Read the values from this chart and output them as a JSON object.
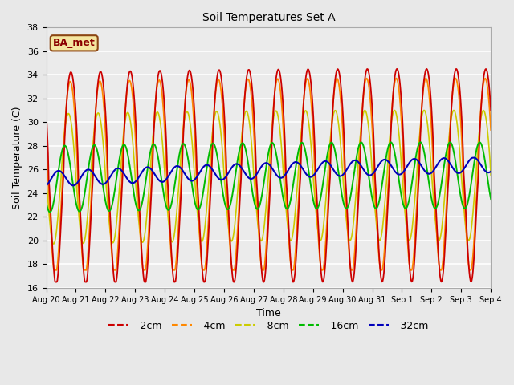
{
  "title": "Soil Temperatures Set A",
  "xlabel": "Time",
  "ylabel": "Soil Temperature (C)",
  "ylim": [
    16,
    38
  ],
  "background_color": "#e8e8e8",
  "plot_bg_color": "#ebebeb",
  "grid_color": "#ffffff",
  "series": {
    "-2cm": {
      "color": "#cc0000"
    },
    "-4cm": {
      "color": "#ff8800"
    },
    "-8cm": {
      "color": "#cccc00"
    },
    "-16cm": {
      "color": "#00bb00"
    },
    "-32cm": {
      "color": "#0000bb"
    }
  },
  "legend_label": "BA_met",
  "tick_labels": [
    "Aug 20",
    "Aug 21",
    "Aug 22",
    "Aug 23",
    "Aug 24",
    "Aug 25",
    "Aug 26",
    "Aug 27",
    "Aug 28",
    "Aug 29",
    "Aug 30",
    "Aug 31",
    "Sep 1",
    "Sep 2",
    "Sep 3",
    "Sep 4"
  ],
  "yticks": [
    16,
    18,
    20,
    22,
    24,
    26,
    28,
    30,
    32,
    34,
    36,
    38
  ]
}
